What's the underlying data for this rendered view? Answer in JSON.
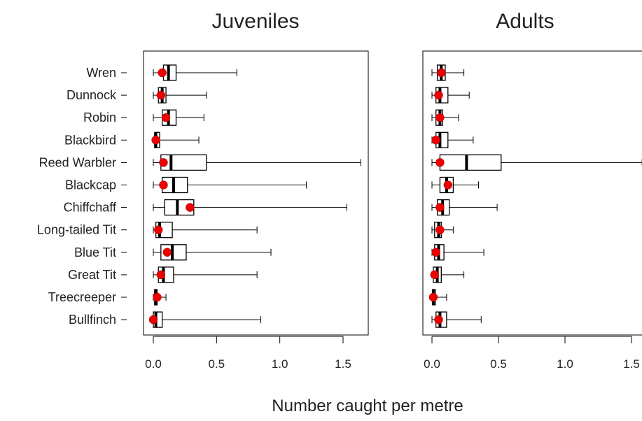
{
  "figure": {
    "xlabel": "Number caught per metre"
  },
  "species": [
    "Wren",
    "Dunnock",
    "Robin",
    "Blackbird",
    "Reed Warbler",
    "Blackcap",
    "Chiffchaff",
    "Long-tailed Tit",
    "Blue Tit",
    "Great Tit",
    "Treecreeper",
    "Bullfinch"
  ],
  "chart_data": [
    {
      "type": "boxplot",
      "title": "Juveniles",
      "xlim": [
        0,
        1.5
      ],
      "x_ticks": [
        "0.0",
        "0.5",
        "1.0",
        "1.5"
      ],
      "x_tick_values": [
        0,
        0.5,
        1.0,
        1.5
      ],
      "categories": [
        "Wren",
        "Dunnock",
        "Robin",
        "Blackbird",
        "Reed Warbler",
        "Blackcap",
        "Chiffchaff",
        "Long-tailed Tit",
        "Blue Tit",
        "Great Tit",
        "Treecreeper",
        "Bullfinch"
      ],
      "boxes": [
        {
          "min": 0.0,
          "q1": 0.08,
          "median": 0.12,
          "q3": 0.18,
          "max": 0.66,
          "mean": 0.07
        },
        {
          "min": 0.0,
          "q1": 0.04,
          "median": 0.07,
          "q3": 0.1,
          "max": 0.42,
          "mean": 0.06
        },
        {
          "min": 0.0,
          "q1": 0.07,
          "median": 0.12,
          "q3": 0.18,
          "max": 0.4,
          "mean": 0.1
        },
        {
          "min": 0.0,
          "q1": 0.01,
          "median": 0.02,
          "q3": 0.05,
          "max": 0.36,
          "mean": 0.02
        },
        {
          "min": 0.0,
          "q1": 0.06,
          "median": 0.14,
          "q3": 0.42,
          "max": 1.64,
          "mean": 0.08
        },
        {
          "min": 0.0,
          "q1": 0.07,
          "median": 0.16,
          "q3": 0.27,
          "max": 1.21,
          "mean": 0.08
        },
        {
          "min": 0.0,
          "q1": 0.09,
          "median": 0.19,
          "q3": 0.32,
          "max": 1.53,
          "mean": 0.29
        },
        {
          "min": 0.0,
          "q1": 0.02,
          "median": 0.05,
          "q3": 0.15,
          "max": 0.82,
          "mean": 0.04
        },
        {
          "min": 0.0,
          "q1": 0.06,
          "median": 0.15,
          "q3": 0.26,
          "max": 0.93,
          "mean": 0.11
        },
        {
          "min": 0.0,
          "q1": 0.04,
          "median": 0.08,
          "q3": 0.16,
          "max": 0.82,
          "mean": 0.06
        },
        {
          "min": 0.0,
          "q1": 0.01,
          "median": 0.02,
          "q3": 0.03,
          "max": 0.1,
          "mean": 0.03
        },
        {
          "min": 0.0,
          "q1": 0.0,
          "median": 0.02,
          "q3": 0.07,
          "max": 0.85,
          "mean": 0.0
        }
      ]
    },
    {
      "type": "boxplot",
      "title": "Adults",
      "xlim": [
        0,
        1.5
      ],
      "x_ticks": [
        "0.0",
        "0.5",
        "1.0",
        "1.5"
      ],
      "x_tick_values": [
        0,
        0.5,
        1.0,
        1.5
      ],
      "categories": [
        "Wren",
        "Dunnock",
        "Robin",
        "Blackbird",
        "Reed Warbler",
        "Blackcap",
        "Chiffchaff",
        "Long-tailed Tit",
        "Blue Tit",
        "Great Tit",
        "Treecreeper",
        "Bullfinch"
      ],
      "boxes": [
        {
          "min": 0.0,
          "q1": 0.04,
          "median": 0.07,
          "q3": 0.1,
          "max": 0.24,
          "mean": 0.07
        },
        {
          "min": 0.0,
          "q1": 0.03,
          "median": 0.06,
          "q3": 0.12,
          "max": 0.28,
          "mean": 0.05
        },
        {
          "min": 0.0,
          "q1": 0.03,
          "median": 0.06,
          "q3": 0.08,
          "max": 0.2,
          "mean": 0.06
        },
        {
          "min": 0.0,
          "q1": 0.03,
          "median": 0.06,
          "q3": 0.12,
          "max": 0.31,
          "mean": 0.03
        },
        {
          "min": 0.0,
          "q1": 0.06,
          "median": 0.26,
          "q3": 0.52,
          "max": 1.58,
          "mean": 0.06
        },
        {
          "min": 0.0,
          "q1": 0.06,
          "median": 0.11,
          "q3": 0.16,
          "max": 0.35,
          "mean": 0.12
        },
        {
          "min": 0.0,
          "q1": 0.04,
          "median": 0.08,
          "q3": 0.13,
          "max": 0.49,
          "mean": 0.06
        },
        {
          "min": 0.0,
          "q1": 0.02,
          "median": 0.05,
          "q3": 0.07,
          "max": 0.16,
          "mean": 0.06
        },
        {
          "min": 0.0,
          "q1": 0.02,
          "median": 0.05,
          "q3": 0.09,
          "max": 0.39,
          "mean": 0.03
        },
        {
          "min": 0.0,
          "q1": 0.01,
          "median": 0.04,
          "q3": 0.07,
          "max": 0.24,
          "mean": 0.02
        },
        {
          "min": 0.0,
          "q1": 0.005,
          "median": 0.01,
          "q3": 0.025,
          "max": 0.11,
          "mean": 0.01
        },
        {
          "min": 0.0,
          "q1": 0.03,
          "median": 0.06,
          "q3": 0.11,
          "max": 0.37,
          "mean": 0.05
        }
      ]
    }
  ],
  "colors": {
    "mean_marker": "#ee0000",
    "axis": "#000000",
    "box_fill": "#ffffff"
  }
}
